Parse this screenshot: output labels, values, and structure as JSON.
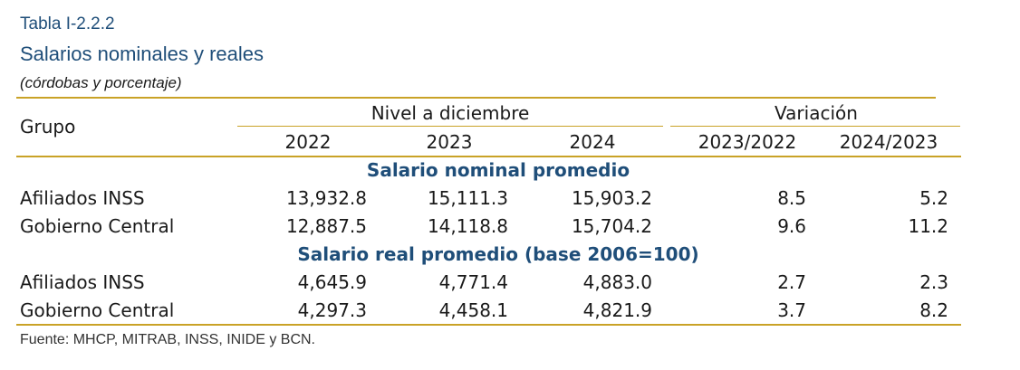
{
  "header": {
    "table_number": "Tabla I-2.2.2",
    "title": "Salarios nominales y reales",
    "units": "(córdobas y porcentaje)"
  },
  "columns": {
    "group_label": "Grupo",
    "level_group": "Nivel a diciembre",
    "variation_group": "Variación",
    "years": [
      "2022",
      "2023",
      "2024"
    ],
    "variations": [
      "2023/2022",
      "2024/2023"
    ]
  },
  "sections": [
    {
      "title": "Salario nominal promedio",
      "rows": [
        {
          "label": "Afiliados INSS",
          "values": [
            "13,932.8",
            "15,111.3",
            "15,903.2",
            "8.5",
            "5.2"
          ]
        },
        {
          "label": "Gobierno Central",
          "values": [
            "12,887.5",
            "14,118.8",
            "15,704.2",
            "9.6",
            "11.2"
          ]
        }
      ]
    },
    {
      "title": "Salario real promedio (base 2006=100)",
      "rows": [
        {
          "label": "Afiliados INSS",
          "values": [
            "4,645.9",
            "4,771.4",
            "4,883.0",
            "2.7",
            "2.3"
          ]
        },
        {
          "label": "Gobierno Central",
          "values": [
            "4,297.3",
            "4,458.1",
            "4,821.9",
            "3.7",
            "8.2"
          ]
        }
      ]
    }
  ],
  "footer": {
    "source": "Fuente: MHCP, MITRAB, INSS, INIDE y BCN."
  },
  "colors": {
    "title_blue": "#1f4e79",
    "rule_gold": "#c9a227"
  }
}
